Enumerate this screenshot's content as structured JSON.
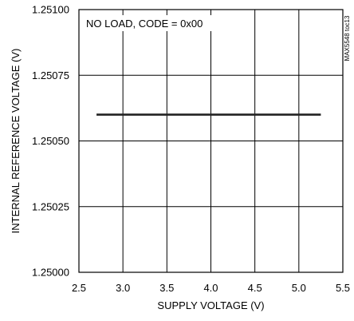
{
  "chart_data": {
    "type": "line",
    "xlabel": "SUPPLY VOLTAGE (V)",
    "ylabel": "INTERNAL REFERENCE VOLTAGE (V)",
    "annotation": "NO LOAD, CODE = 0x00",
    "figure_id": "MAX5548 toc13",
    "xlim": [
      2.5,
      5.5
    ],
    "ylim": [
      1.25,
      1.251
    ],
    "x_ticks": [
      "2.5",
      "3.0",
      "3.5",
      "4.0",
      "4.5",
      "5.0",
      "5.5"
    ],
    "y_ticks": [
      "1.25000",
      "1.25025",
      "1.25050",
      "1.25075",
      "1.25100"
    ],
    "grid": true,
    "series": [
      {
        "x": [
          2.7,
          5.25
        ],
        "y": [
          1.2506,
          1.2506
        ]
      }
    ]
  }
}
